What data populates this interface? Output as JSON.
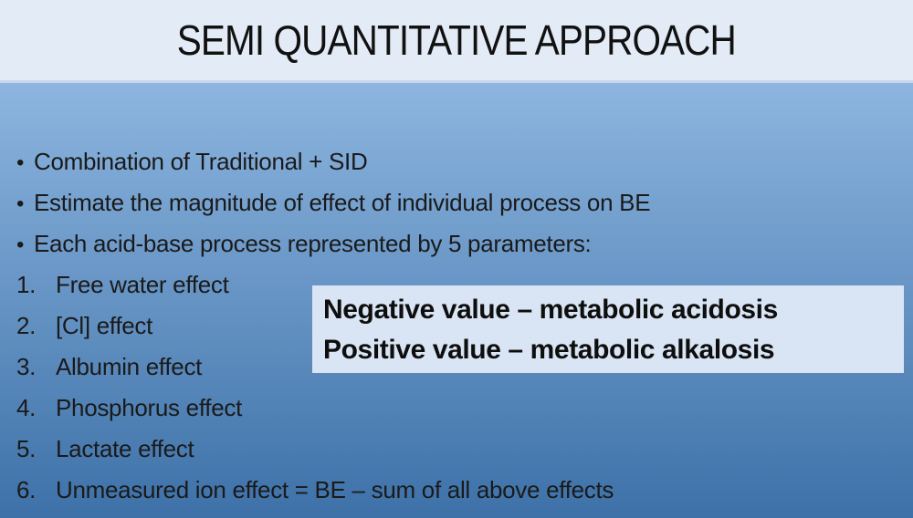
{
  "slide": {
    "title": "SEMI QUANTITATIVE APPROACH",
    "bullets": [
      "Combination of Traditional + SID",
      "Estimate the magnitude of effect of individual process on BE",
      "Each acid-base process represented by 5 parameters:"
    ],
    "numbered": [
      {
        "num": "1.",
        "text": "Free water effect"
      },
      {
        "num": "2.",
        "text": "[Cl] effect"
      },
      {
        "num": "3.",
        "text": "Albumin effect"
      },
      {
        "num": "4.",
        "text": "Phosphorus effect"
      },
      {
        "num": "5.",
        "text": "Lactate effect"
      },
      {
        "num": "6.",
        "text": "Unmeasured ion effect = BE – sum of all above effects"
      }
    ],
    "callout": {
      "line1": "Negative value – metabolic acidosis",
      "line2": "Positive value – metabolic alkalosis"
    },
    "bullet_marker": "•",
    "layout": {
      "bullet_tops": [
        70,
        115,
        160
      ],
      "numbered_tops": [
        205,
        250,
        295,
        340,
        385,
        430
      ]
    },
    "colors": {
      "header_bg": "#e3ebf6",
      "divider": "#c9d7eb",
      "body_top": "#8db5df",
      "body_bottom": "#3d71a8",
      "callout_bg": "#d9e5f4",
      "text": "#1a1a1a"
    }
  }
}
